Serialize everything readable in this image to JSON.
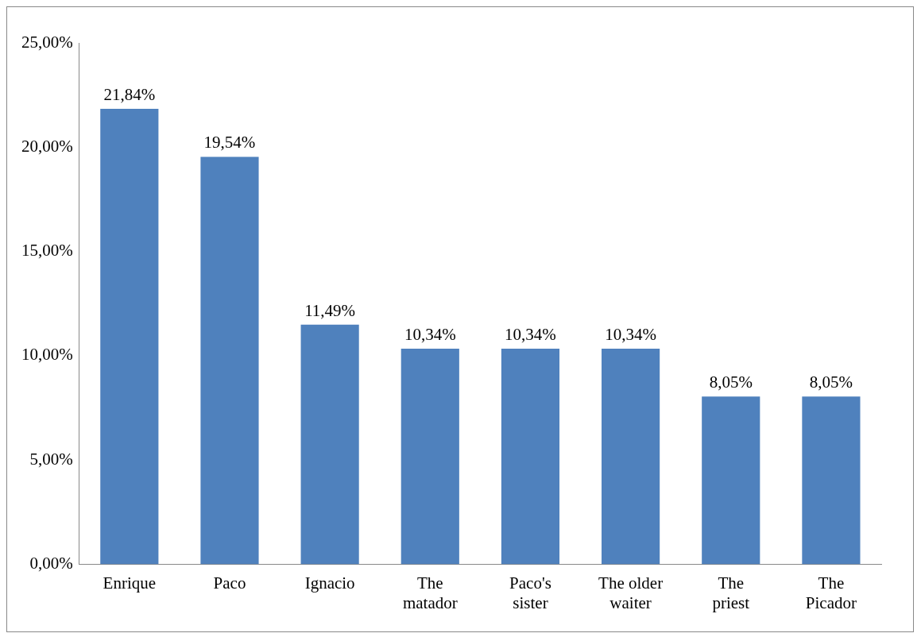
{
  "chart_data": {
    "type": "bar",
    "categories": [
      "Enrique",
      "Paco",
      "Ignacio",
      "The matador",
      "Paco's sister",
      "The older waiter",
      "The priest",
      "The Picador"
    ],
    "values": [
      21.84,
      19.54,
      11.49,
      10.34,
      10.34,
      10.34,
      8.05,
      8.05
    ],
    "value_labels": [
      "21,84%",
      "19,54%",
      "11,49%",
      "10,34%",
      "10,34%",
      "10,34%",
      "8,05%",
      "8,05%"
    ],
    "color": "#4f81bd",
    "ylim": [
      0,
      25
    ],
    "yticks": [
      {
        "value": 0,
        "label": "0,00%"
      },
      {
        "value": 5,
        "label": "5,00%"
      },
      {
        "value": 10,
        "label": "10,00%"
      },
      {
        "value": 15,
        "label": "15,00%"
      },
      {
        "value": 20,
        "label": "20,00%"
      },
      {
        "value": 25,
        "label": "25,00%"
      }
    ],
    "grid": false,
    "legend": false
  }
}
